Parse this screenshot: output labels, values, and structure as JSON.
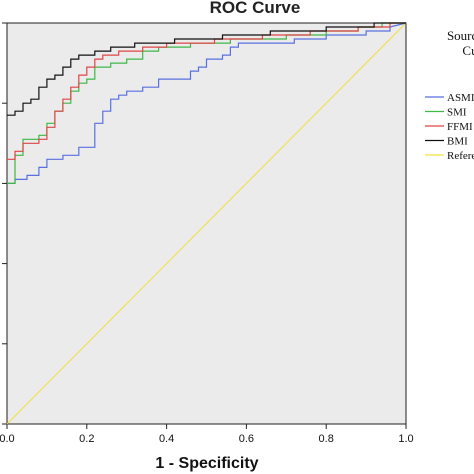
{
  "chart_data": {
    "type": "line",
    "title": "ROC Curve",
    "xlabel": "1 - Specificity",
    "ylabel": "",
    "xlim": [
      0,
      1
    ],
    "ylim": [
      0,
      1
    ],
    "x_ticks": [
      "0.0",
      "0.2",
      "0.4",
      "0.6",
      "0.8",
      "1.0"
    ],
    "legend": {
      "title_lines": [
        "Source",
        "Cu"
      ],
      "placement": "right",
      "entries": [
        "ASMI",
        "SMI",
        "FFMI",
        "BMI",
        "Refere"
      ]
    },
    "background": "#ebebeb",
    "series": [
      {
        "name": "ASMI",
        "color": "#5a6fe0",
        "points": [
          [
            0,
            0.6
          ],
          [
            0.02,
            0.6
          ],
          [
            0.02,
            0.61
          ],
          [
            0.05,
            0.61
          ],
          [
            0.05,
            0.62
          ],
          [
            0.08,
            0.62
          ],
          [
            0.08,
            0.64
          ],
          [
            0.1,
            0.64
          ],
          [
            0.1,
            0.66
          ],
          [
            0.14,
            0.66
          ],
          [
            0.14,
            0.67
          ],
          [
            0.18,
            0.67
          ],
          [
            0.18,
            0.69
          ],
          [
            0.22,
            0.69
          ],
          [
            0.22,
            0.75
          ],
          [
            0.24,
            0.75
          ],
          [
            0.24,
            0.78
          ],
          [
            0.26,
            0.78
          ],
          [
            0.26,
            0.81
          ],
          [
            0.28,
            0.81
          ],
          [
            0.28,
            0.82
          ],
          [
            0.3,
            0.82
          ],
          [
            0.3,
            0.83
          ],
          [
            0.34,
            0.83
          ],
          [
            0.34,
            0.84
          ],
          [
            0.38,
            0.84
          ],
          [
            0.38,
            0.86
          ],
          [
            0.46,
            0.86
          ],
          [
            0.46,
            0.88
          ],
          [
            0.48,
            0.88
          ],
          [
            0.48,
            0.89
          ],
          [
            0.5,
            0.89
          ],
          [
            0.5,
            0.91
          ],
          [
            0.54,
            0.91
          ],
          [
            0.54,
            0.92
          ],
          [
            0.56,
            0.92
          ],
          [
            0.56,
            0.94
          ],
          [
            0.58,
            0.94
          ],
          [
            0.58,
            0.95
          ],
          [
            0.72,
            0.95
          ],
          [
            0.72,
            0.96
          ],
          [
            0.8,
            0.96
          ],
          [
            0.8,
            0.97
          ],
          [
            0.9,
            0.97
          ],
          [
            0.9,
            0.98
          ],
          [
            0.96,
            0.98
          ],
          [
            0.96,
            0.99
          ],
          [
            1.0,
            1.0
          ]
        ]
      },
      {
        "name": "SMI",
        "color": "#3db845",
        "points": [
          [
            0,
            0.6
          ],
          [
            0.02,
            0.6
          ],
          [
            0.02,
            0.67
          ],
          [
            0.04,
            0.67
          ],
          [
            0.04,
            0.71
          ],
          [
            0.08,
            0.71
          ],
          [
            0.08,
            0.72
          ],
          [
            0.1,
            0.72
          ],
          [
            0.1,
            0.75
          ],
          [
            0.12,
            0.75
          ],
          [
            0.12,
            0.78
          ],
          [
            0.14,
            0.78
          ],
          [
            0.14,
            0.8
          ],
          [
            0.16,
            0.8
          ],
          [
            0.16,
            0.83
          ],
          [
            0.18,
            0.83
          ],
          [
            0.18,
            0.85
          ],
          [
            0.2,
            0.85
          ],
          [
            0.2,
            0.86
          ],
          [
            0.22,
            0.86
          ],
          [
            0.22,
            0.89
          ],
          [
            0.26,
            0.89
          ],
          [
            0.26,
            0.9
          ],
          [
            0.3,
            0.9
          ],
          [
            0.3,
            0.91
          ],
          [
            0.34,
            0.91
          ],
          [
            0.34,
            0.93
          ],
          [
            0.38,
            0.93
          ],
          [
            0.38,
            0.94
          ],
          [
            0.46,
            0.94
          ],
          [
            0.46,
            0.95
          ],
          [
            0.56,
            0.95
          ],
          [
            0.56,
            0.96
          ],
          [
            0.7,
            0.96
          ],
          [
            0.7,
            0.97
          ],
          [
            0.8,
            0.97
          ],
          [
            0.8,
            0.98
          ],
          [
            0.88,
            0.98
          ],
          [
            0.88,
            0.99
          ],
          [
            0.94,
            0.99
          ],
          [
            0.94,
            1.0
          ],
          [
            1.0,
            1.0
          ]
        ]
      },
      {
        "name": "FFMI",
        "color": "#e04545",
        "points": [
          [
            0,
            0.66
          ],
          [
            0.02,
            0.66
          ],
          [
            0.02,
            0.68
          ],
          [
            0.04,
            0.68
          ],
          [
            0.04,
            0.7
          ],
          [
            0.08,
            0.7
          ],
          [
            0.08,
            0.71
          ],
          [
            0.1,
            0.71
          ],
          [
            0.1,
            0.74
          ],
          [
            0.12,
            0.74
          ],
          [
            0.12,
            0.78
          ],
          [
            0.14,
            0.78
          ],
          [
            0.14,
            0.81
          ],
          [
            0.16,
            0.81
          ],
          [
            0.16,
            0.84
          ],
          [
            0.18,
            0.84
          ],
          [
            0.18,
            0.87
          ],
          [
            0.2,
            0.87
          ],
          [
            0.2,
            0.89
          ],
          [
            0.22,
            0.89
          ],
          [
            0.22,
            0.91
          ],
          [
            0.24,
            0.91
          ],
          [
            0.24,
            0.92
          ],
          [
            0.28,
            0.92
          ],
          [
            0.28,
            0.93
          ],
          [
            0.34,
            0.93
          ],
          [
            0.34,
            0.94
          ],
          [
            0.4,
            0.94
          ],
          [
            0.4,
            0.95
          ],
          [
            0.52,
            0.95
          ],
          [
            0.52,
            0.96
          ],
          [
            0.64,
            0.96
          ],
          [
            0.64,
            0.97
          ],
          [
            0.76,
            0.97
          ],
          [
            0.76,
            0.98
          ],
          [
            0.88,
            0.98
          ],
          [
            0.88,
            0.99
          ],
          [
            0.96,
            0.99
          ],
          [
            0.96,
            1.0
          ],
          [
            1.0,
            1.0
          ]
        ]
      },
      {
        "name": "BMI",
        "color": "#111111",
        "points": [
          [
            0,
            0.77
          ],
          [
            0.02,
            0.77
          ],
          [
            0.02,
            0.78
          ],
          [
            0.04,
            0.78
          ],
          [
            0.04,
            0.8
          ],
          [
            0.06,
            0.8
          ],
          [
            0.06,
            0.81
          ],
          [
            0.08,
            0.81
          ],
          [
            0.08,
            0.84
          ],
          [
            0.1,
            0.84
          ],
          [
            0.1,
            0.86
          ],
          [
            0.12,
            0.86
          ],
          [
            0.12,
            0.87
          ],
          [
            0.14,
            0.87
          ],
          [
            0.14,
            0.89
          ],
          [
            0.16,
            0.89
          ],
          [
            0.16,
            0.91
          ],
          [
            0.18,
            0.91
          ],
          [
            0.18,
            0.92
          ],
          [
            0.22,
            0.92
          ],
          [
            0.22,
            0.93
          ],
          [
            0.26,
            0.93
          ],
          [
            0.26,
            0.94
          ],
          [
            0.32,
            0.94
          ],
          [
            0.32,
            0.95
          ],
          [
            0.42,
            0.95
          ],
          [
            0.42,
            0.96
          ],
          [
            0.54,
            0.96
          ],
          [
            0.54,
            0.97
          ],
          [
            0.66,
            0.97
          ],
          [
            0.66,
            0.98
          ],
          [
            0.8,
            0.98
          ],
          [
            0.8,
            0.99
          ],
          [
            0.92,
            0.99
          ],
          [
            0.92,
            1.0
          ],
          [
            1.0,
            1.0
          ]
        ]
      },
      {
        "name": "Refere",
        "color": "#f0e040",
        "points": [
          [
            0,
            0
          ],
          [
            1,
            1
          ]
        ]
      }
    ]
  }
}
